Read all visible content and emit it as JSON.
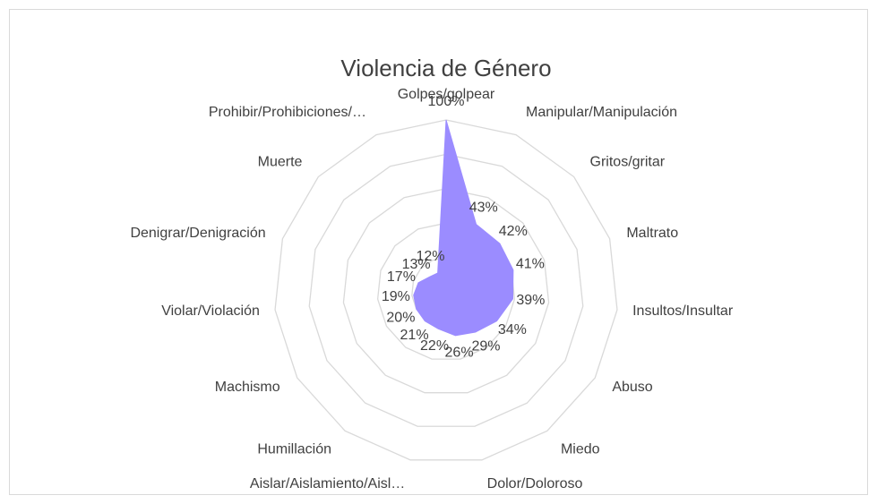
{
  "chart_data": {
    "type": "radar",
    "title": "Violencia de Género",
    "categories": [
      "Golpes/golpear",
      "Manipular/Manipulación",
      "Gritos/gritar",
      "Maltrato",
      "Insultos/Insultar",
      "Abuso",
      "Miedo",
      "Dolor/Doloroso",
      "Aislar/Aislamiento/Aisl…",
      "Humillación",
      "Machismo",
      "Violar/Violación",
      "Denigrar/Denigración",
      "Muerte",
      "Prohibir/Prohibiciones/…"
    ],
    "values": [
      100,
      43,
      42,
      41,
      39,
      34,
      29,
      26,
      22,
      21,
      20,
      19,
      17,
      13,
      12
    ],
    "value_labels": [
      "100%",
      "43%",
      "42%",
      "41%",
      "39%",
      "34%",
      "29%",
      "26%",
      "22%",
      "21%",
      "20%",
      "19%",
      "17%",
      "13%",
      "12%"
    ],
    "color": "#9b8cff",
    "ylim": [
      0,
      100
    ],
    "yticks": [
      0,
      20,
      40,
      60,
      80,
      100
    ],
    "grid": true
  }
}
